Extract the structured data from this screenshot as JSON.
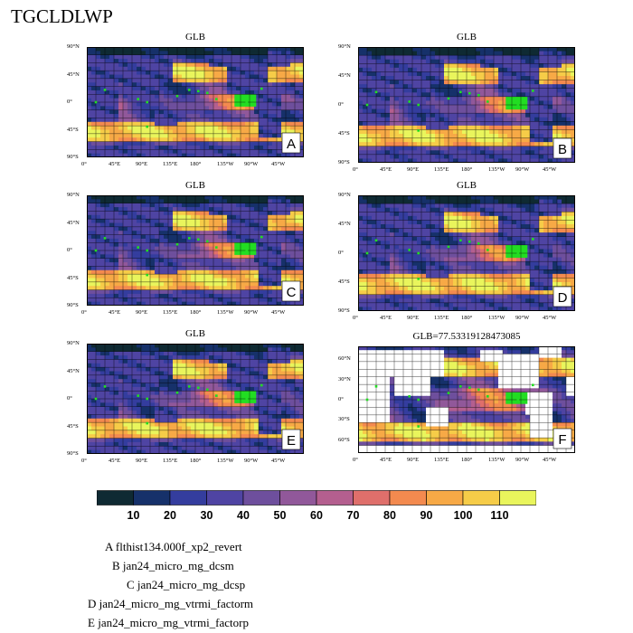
{
  "title": "TGCLDLWP",
  "chart_data": [
    {
      "type": "heatmap",
      "panel": "A",
      "title": "GLB",
      "projection": "cylindrical",
      "lon_range": [
        0,
        360
      ],
      "lat_range": [
        -90,
        90
      ]
    },
    {
      "type": "heatmap",
      "panel": "B",
      "title": "GLB",
      "projection": "cylindrical",
      "lon_range": [
        0,
        360
      ],
      "lat_range": [
        -90,
        90
      ]
    },
    {
      "type": "heatmap",
      "panel": "C",
      "title": "GLB",
      "projection": "cylindrical",
      "lon_range": [
        0,
        360
      ],
      "lat_range": [
        -90,
        90
      ]
    },
    {
      "type": "heatmap",
      "panel": "D",
      "title": "GLB",
      "projection": "cylindrical",
      "lon_range": [
        0,
        360
      ],
      "lat_range": [
        -90,
        90
      ]
    },
    {
      "type": "heatmap",
      "panel": "E",
      "title": "GLB",
      "projection": "cylindrical",
      "lon_range": [
        0,
        360
      ],
      "lat_range": [
        -90,
        90
      ]
    },
    {
      "type": "heatmap",
      "panel": "F",
      "title": "GLB=77.53319128473085",
      "projection": "cylindrical",
      "lon_range": [
        0,
        360
      ],
      "lat_range": [
        -80,
        80
      ]
    }
  ],
  "ytick_labels_full": [
    "90°N",
    "45°N",
    "0°",
    "45°S",
    "90°S"
  ],
  "ytick_labels_f": [
    "60°N",
    "30°N",
    "0°",
    "30°S",
    "60°S"
  ],
  "xtick_labels": [
    "0°",
    "45°E",
    "90°E",
    "135°E",
    "180°",
    "135°W",
    "90°W",
    "45°W"
  ],
  "colorbar": {
    "levels": [
      "10",
      "20",
      "30",
      "40",
      "50",
      "60",
      "70",
      "80",
      "90",
      "100",
      "110"
    ],
    "colors": [
      "#0f2a33",
      "#16316a",
      "#343d9e",
      "#4f44a3",
      "#6e4f9d",
      "#91589a",
      "#b45f8f",
      "#df6f6b",
      "#f38a4f",
      "#f7a946",
      "#f6cc48",
      "#e9f55c"
    ]
  },
  "legend": [
    {
      "letter": "A",
      "name": "flthist134.000f_xp2_revert"
    },
    {
      "letter": "B",
      "name": "jan24_micro_mg_dcsm"
    },
    {
      "letter": "C",
      "name": "jan24_micro_mg_dcsp"
    },
    {
      "letter": "D",
      "name": "jan24_micro_mg_vtrmi_factorm"
    },
    {
      "letter": "E",
      "name": "jan24_micro_mg_vtrmi_factorp"
    }
  ]
}
